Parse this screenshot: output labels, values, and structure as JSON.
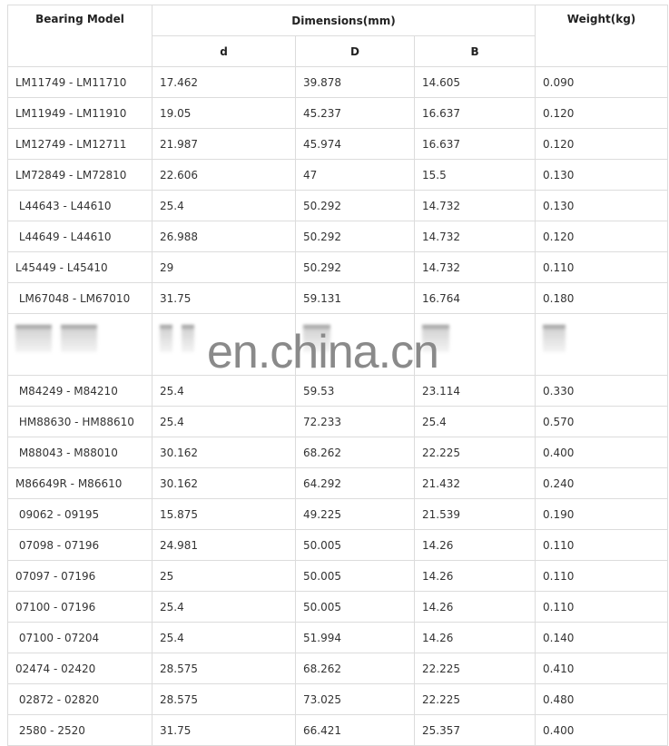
{
  "headers": {
    "model": "Bearing Model",
    "dimensions": "Dimensions(mm)",
    "d": "d",
    "D": "D",
    "B": "B",
    "weight": "Weight(kg)"
  },
  "rows": [
    [
      "LM11749 - LM11710",
      "17.462",
      "39.878",
      "14.605",
      "0.090"
    ],
    [
      "LM11949 - LM11910",
      "19.05",
      "45.237",
      "16.637",
      "0.120"
    ],
    [
      "LM12749 - LM12711",
      "21.987",
      "45.974",
      "16.637",
      "0.120"
    ],
    [
      "LM72849 - LM72810",
      "22.606",
      "47",
      "15.5",
      "0.130"
    ],
    [
      " L44643 - L44610",
      "25.4",
      "50.292",
      "14.732",
      "0.130"
    ],
    [
      " L44649 - L44610",
      "26.988",
      "50.292",
      "14.732",
      "0.120"
    ],
    [
      "L45449 - L45410",
      "29",
      "50.292",
      "14.732",
      "0.110"
    ],
    [
      " LM67048 - LM67010",
      "31.75",
      "59.131",
      "16.764",
      "0.180"
    ]
  ],
  "rows_after": [
    [
      " M84249 - M84210",
      "25.4",
      "59.53",
      "23.114",
      "0.330"
    ],
    [
      " HM88630 - HM88610",
      "25.4",
      "72.233",
      "25.4",
      "0.570"
    ],
    [
      " M88043 - M88010",
      "30.162",
      "68.262",
      "22.225",
      "0.400"
    ],
    [
      "M86649R - M86610",
      "30.162",
      "64.292",
      "21.432",
      "0.240"
    ],
    [
      " 09062 - 09195",
      "15.875",
      "49.225",
      "21.539",
      "0.190"
    ],
    [
      " 07098 - 07196",
      "24.981",
      "50.005",
      "14.26",
      "0.110"
    ],
    [
      "07097 - 07196",
      "25",
      "50.005",
      "14.26",
      "0.110"
    ],
    [
      "07100 - 07196",
      "25.4",
      "50.005",
      "14.26",
      "0.110"
    ],
    [
      " 07100 - 07204",
      "25.4",
      "51.994",
      "14.26",
      "0.140"
    ],
    [
      "02474 - 02420",
      "28.575",
      "68.262",
      "22.225",
      "0.410"
    ],
    [
      " 02872 - 02820",
      "28.575",
      "73.025",
      "22.225",
      "0.480"
    ],
    [
      " 2580 - 2520",
      "31.75",
      "66.421",
      "25.357",
      "0.400"
    ]
  ],
  "watermark": "en.china.cn"
}
